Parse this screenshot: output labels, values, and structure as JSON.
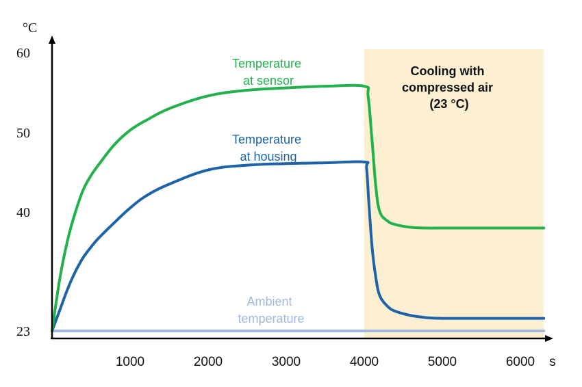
{
  "chart_data": {
    "type": "line",
    "ylabel": "°C",
    "xlabel": "s",
    "xlim": [
      0,
      6300
    ],
    "ylim": [
      23,
      60
    ],
    "x_ticks": [
      1000,
      2000,
      3000,
      4000,
      5000,
      6000
    ],
    "y_ticks": [
      23,
      40,
      50,
      60
    ],
    "grid": false,
    "shaded_region": {
      "x_start": 4000,
      "x_end": 6300,
      "color": "#fcefd2",
      "label_lines": [
        "Cooling with",
        "compressed air",
        "(23 °C)"
      ]
    },
    "series": [
      {
        "name": "Temperature at sensor",
        "label_lines": [
          "Temperature",
          "at sensor"
        ],
        "color": "#22b14c",
        "x": [
          0,
          100,
          200,
          300,
          400,
          500,
          600,
          800,
          1000,
          1200,
          1500,
          2000,
          2500,
          3000,
          3500,
          4000,
          4050,
          4100,
          4150,
          4200,
          4300,
          4400,
          4600,
          4800,
          5000,
          5500,
          6000,
          6300
        ],
        "y": [
          23,
          30.5,
          36,
          40,
          42.8,
          44.6,
          46,
          48.5,
          50.3,
          51.5,
          53,
          54.6,
          55.3,
          55.6,
          55.8,
          55.8,
          54.5,
          49,
          43,
          40,
          38.7,
          38.2,
          37.8,
          37.7,
          37.7,
          37.7,
          37.7,
          37.7
        ]
      },
      {
        "name": "Temperature at housing",
        "label_lines": [
          "Temperature",
          "at housing"
        ],
        "color": "#1c63a8",
        "x": [
          0,
          100,
          200,
          300,
          400,
          500,
          600,
          800,
          1000,
          1200,
          1500,
          2000,
          2500,
          3000,
          3500,
          4000,
          4030,
          4060,
          4100,
          4150,
          4200,
          4300,
          4400,
          4600,
          4800,
          5000,
          5500,
          6000,
          6300
        ],
        "y": [
          23,
          26,
          29,
          31.5,
          33.5,
          35,
          36.3,
          38.5,
          40.5,
          42,
          43.5,
          45.3,
          45.9,
          46.1,
          46.2,
          46.3,
          45.5,
          41,
          35,
          30.5,
          28,
          26.5,
          25.8,
          25.2,
          24.9,
          24.8,
          24.8,
          24.8,
          24.8
        ]
      },
      {
        "name": "Ambient temperature",
        "label_lines": [
          "Ambient",
          "temperature"
        ],
        "color": "#9fb8e0",
        "x": [
          0,
          6300
        ],
        "y": [
          23,
          23
        ]
      }
    ]
  }
}
